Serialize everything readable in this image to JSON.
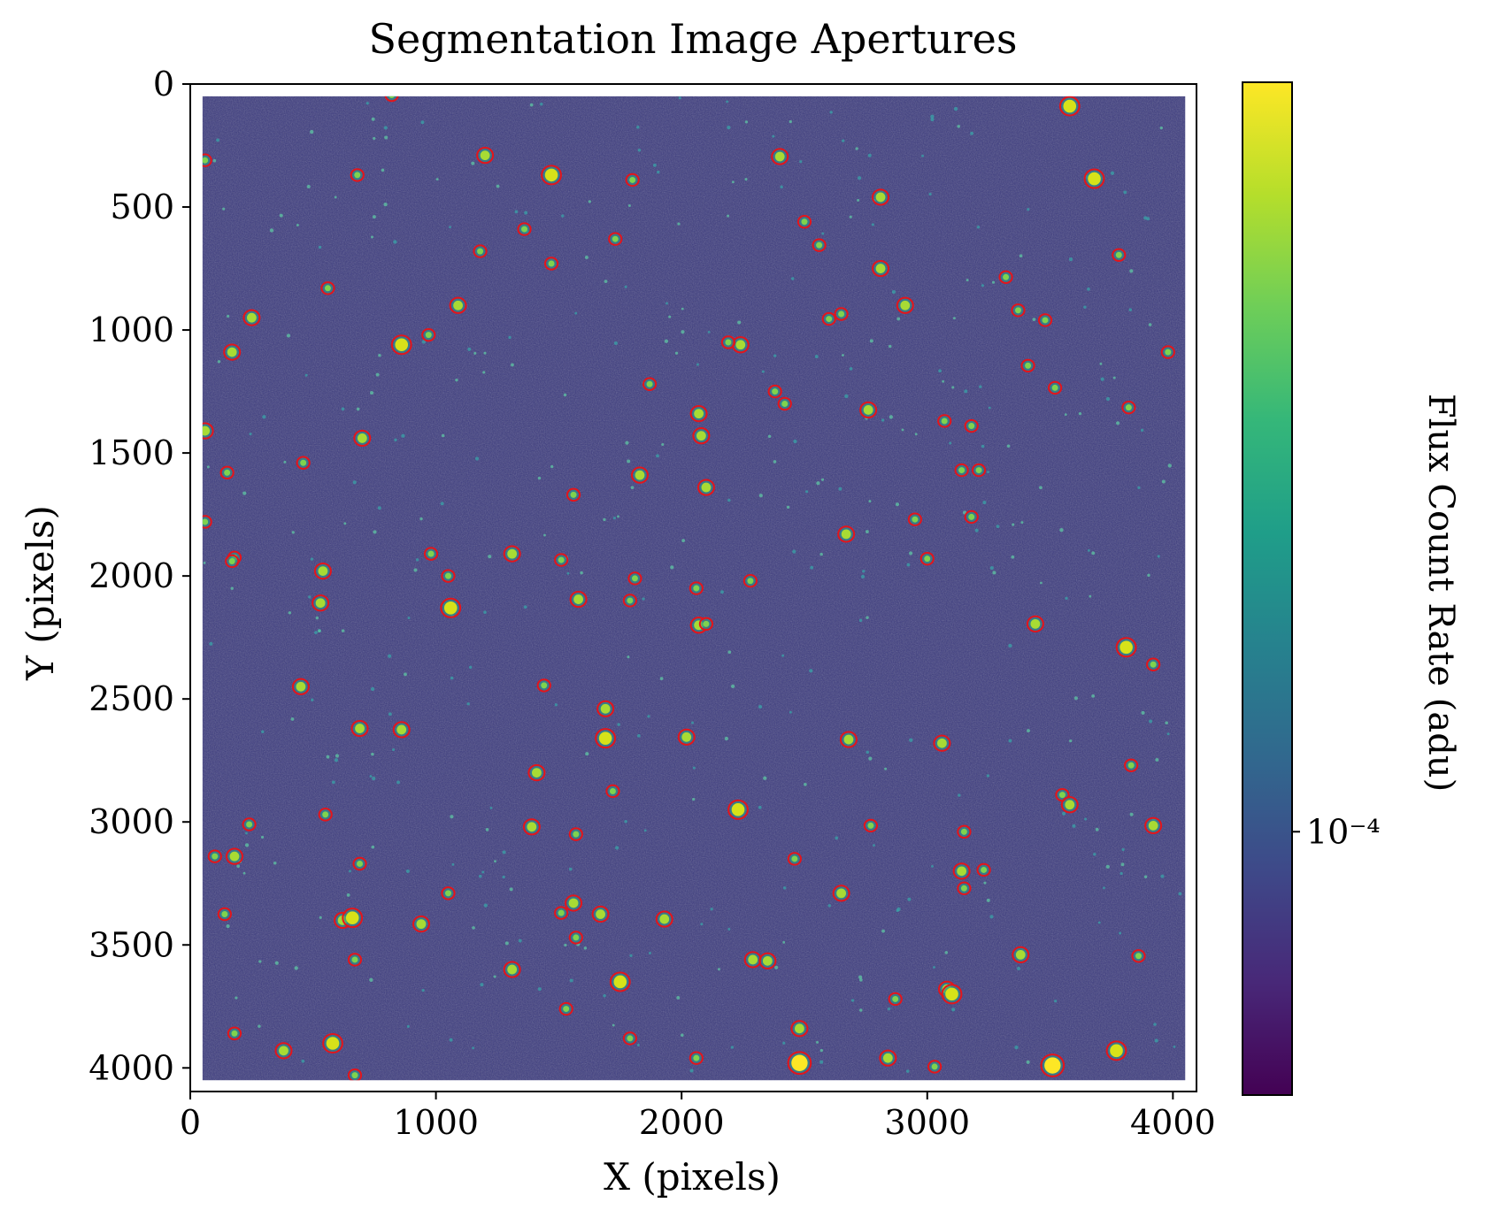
{
  "chart_data": {
    "type": "image",
    "title": "Segmentation Image Apertures",
    "xlabel": "X (pixels)",
    "ylabel": "Y (pixels)",
    "xlim": [
      0,
      4096
    ],
    "ylim": [
      4096,
      0
    ],
    "xticks": [
      0,
      1000,
      2000,
      3000,
      4000
    ],
    "yticks": [
      0,
      500,
      1000,
      1500,
      2000,
      2500,
      3000,
      3500,
      4000
    ],
    "xtick_labels": [
      "0",
      "1000",
      "2000",
      "3000",
      "4000"
    ],
    "ytick_labels": [
      "0",
      "500",
      "1000",
      "1500",
      "2000",
      "2500",
      "3000",
      "3500",
      "4000"
    ],
    "data_extent": {
      "x": [
        50,
        4050
      ],
      "y": [
        50,
        4050
      ]
    },
    "colormap": "viridis",
    "background_color": "#3b3a7e",
    "aperture_color": "#e4151b",
    "colorbar": {
      "label": "Flux Count Rate (adu)",
      "scale": "log",
      "tick_label": "10⁻⁴",
      "tick_fraction": 0.26,
      "colors": [
        "#440154",
        "#482878",
        "#3e4989",
        "#31688e",
        "#26828e",
        "#1f9e89",
        "#35b779",
        "#6ece58",
        "#b5de2b",
        "#fde725"
      ]
    },
    "sources": [
      [
        820,
        45,
        1
      ],
      [
        3580,
        90,
        3
      ],
      [
        60,
        310,
        1
      ],
      [
        1200,
        290,
        2
      ],
      [
        2400,
        295,
        2
      ],
      [
        1470,
        370,
        3
      ],
      [
        680,
        370,
        1
      ],
      [
        3680,
        385,
        3
      ],
      [
        2810,
        460,
        2
      ],
      [
        1800,
        390,
        1
      ],
      [
        2500,
        560,
        1
      ],
      [
        1360,
        590,
        1
      ],
      [
        1730,
        630,
        1
      ],
      [
        2560,
        655,
        1
      ],
      [
        1180,
        680,
        1
      ],
      [
        1470,
        730,
        1
      ],
      [
        3780,
        695,
        1
      ],
      [
        2810,
        750,
        2
      ],
      [
        3320,
        785,
        1
      ],
      [
        560,
        830,
        1
      ],
      [
        1090,
        900,
        2
      ],
      [
        2910,
        900,
        2
      ],
      [
        3370,
        920,
        1
      ],
      [
        250,
        950,
        2
      ],
      [
        2650,
        935,
        1
      ],
      [
        2600,
        955,
        1
      ],
      [
        3480,
        960,
        1
      ],
      [
        860,
        1060,
        3
      ],
      [
        970,
        1020,
        1
      ],
      [
        2240,
        1060,
        2
      ],
      [
        2190,
        1050,
        1
      ],
      [
        170,
        1090,
        2
      ],
      [
        3980,
        1090,
        1
      ],
      [
        3410,
        1145,
        1
      ],
      [
        1870,
        1220,
        1
      ],
      [
        3520,
        1235,
        1
      ],
      [
        2380,
        1250,
        1
      ],
      [
        2420,
        1300,
        1
      ],
      [
        2070,
        1340,
        2
      ],
      [
        2760,
        1325,
        2
      ],
      [
        3820,
        1315,
        1
      ],
      [
        3070,
        1370,
        1
      ],
      [
        60,
        1410,
        2
      ],
      [
        3180,
        1390,
        1
      ],
      [
        2080,
        1430,
        2
      ],
      [
        700,
        1440,
        2
      ],
      [
        460,
        1540,
        1
      ],
      [
        150,
        1580,
        1
      ],
      [
        3140,
        1570,
        1
      ],
      [
        3210,
        1570,
        1
      ],
      [
        1830,
        1590,
        2
      ],
      [
        2100,
        1640,
        2
      ],
      [
        1560,
        1670,
        1
      ],
      [
        60,
        1780,
        1
      ],
      [
        2950,
        1770,
        1
      ],
      [
        3180,
        1760,
        1
      ],
      [
        2670,
        1830,
        2
      ],
      [
        1310,
        1910,
        2
      ],
      [
        980,
        1910,
        1
      ],
      [
        1510,
        1935,
        1
      ],
      [
        180,
        1925,
        1
      ],
      [
        170,
        1940,
        1
      ],
      [
        3000,
        1930,
        1
      ],
      [
        540,
        1980,
        2
      ],
      [
        1050,
        2000,
        1
      ],
      [
        1810,
        2010,
        1
      ],
      [
        2280,
        2020,
        1
      ],
      [
        2060,
        2050,
        1
      ],
      [
        530,
        2110,
        2
      ],
      [
        1060,
        2130,
        3
      ],
      [
        1580,
        2095,
        2
      ],
      [
        1790,
        2100,
        1
      ],
      [
        2070,
        2200,
        2
      ],
      [
        2100,
        2195,
        1
      ],
      [
        3440,
        2195,
        2
      ],
      [
        3810,
        2290,
        3
      ],
      [
        3920,
        2360,
        1
      ],
      [
        450,
        2450,
        2
      ],
      [
        1440,
        2445,
        1
      ],
      [
        1690,
        2540,
        2
      ],
      [
        690,
        2620,
        2
      ],
      [
        860,
        2625,
        2
      ],
      [
        2020,
        2655,
        2
      ],
      [
        1690,
        2660,
        3
      ],
      [
        2680,
        2665,
        2
      ],
      [
        3060,
        2680,
        2
      ],
      [
        3830,
        2770,
        1
      ],
      [
        1410,
        2800,
        2
      ],
      [
        1720,
        2875,
        1
      ],
      [
        3550,
        2890,
        1
      ],
      [
        3580,
        2930,
        2
      ],
      [
        2230,
        2950,
        3
      ],
      [
        550,
        2970,
        1
      ],
      [
        240,
        3010,
        1
      ],
      [
        1390,
        3020,
        2
      ],
      [
        2770,
        3015,
        1
      ],
      [
        3920,
        3015,
        2
      ],
      [
        1570,
        3050,
        1
      ],
      [
        3150,
        3040,
        1
      ],
      [
        180,
        3140,
        2
      ],
      [
        100,
        3140,
        1
      ],
      [
        2460,
        3150,
        1
      ],
      [
        690,
        3170,
        1
      ],
      [
        3140,
        3200,
        2
      ],
      [
        3230,
        3195,
        1
      ],
      [
        3150,
        3270,
        1
      ],
      [
        1050,
        3290,
        1
      ],
      [
        2650,
        3290,
        2
      ],
      [
        1560,
        3330,
        2
      ],
      [
        1510,
        3370,
        1
      ],
      [
        140,
        3375,
        1
      ],
      [
        1670,
        3375,
        2
      ],
      [
        620,
        3400,
        2
      ],
      [
        660,
        3390,
        3
      ],
      [
        1930,
        3395,
        2
      ],
      [
        940,
        3415,
        2
      ],
      [
        1570,
        3470,
        1
      ],
      [
        3380,
        3540,
        2
      ],
      [
        3860,
        3545,
        1
      ],
      [
        670,
        3560,
        1
      ],
      [
        2290,
        3560,
        2
      ],
      [
        2350,
        3565,
        2
      ],
      [
        1310,
        3600,
        2
      ],
      [
        1750,
        3650,
        3
      ],
      [
        3080,
        3680,
        2
      ],
      [
        3100,
        3700,
        3
      ],
      [
        2870,
        3720,
        1
      ],
      [
        1530,
        3760,
        1
      ],
      [
        2480,
        3840,
        2
      ],
      [
        180,
        3860,
        1
      ],
      [
        1790,
        3880,
        1
      ],
      [
        580,
        3900,
        3
      ],
      [
        380,
        3930,
        2
      ],
      [
        3770,
        3930,
        3
      ],
      [
        2840,
        3960,
        2
      ],
      [
        2060,
        3960,
        1
      ],
      [
        2480,
        3980,
        4
      ],
      [
        3510,
        3990,
        4
      ],
      [
        3030,
        3995,
        1
      ],
      [
        670,
        4030,
        1
      ]
    ]
  }
}
